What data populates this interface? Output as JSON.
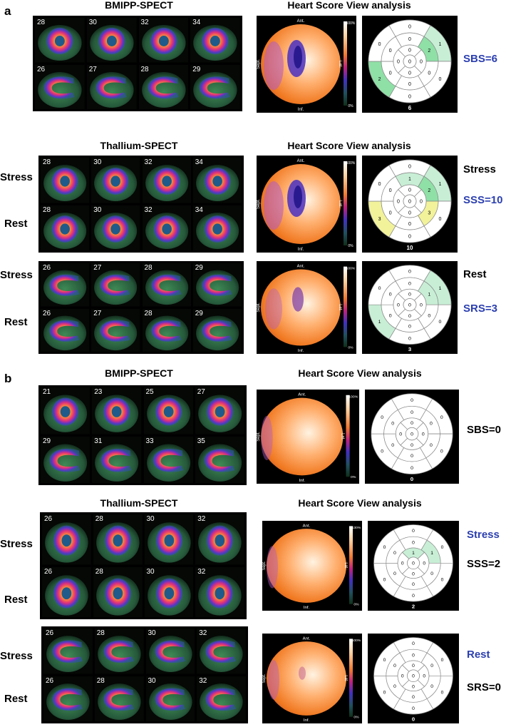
{
  "panels": {
    "a": {
      "label": "a",
      "blocks": [
        {
          "scan_heading": "BMIPP-SPECT",
          "view_heading": "Heart Score View analysis",
          "rows": [
            {
              "label": "",
              "slices": [
                "28",
                "30",
                "32",
                "34"
              ],
              "style": "sa"
            },
            {
              "label": "",
              "slices": [
                "26",
                "27",
                "28",
                "29"
              ],
              "style": "la"
            }
          ],
          "polar": {
            "ant": "Ant.",
            "inf": "Inf.",
            "sept": "Sept.",
            "lat": "Lat.",
            "top_pct": "100%",
            "bottom_pct": "0%",
            "defect": "strong"
          },
          "bullseye": {
            "segments": [
              "0",
              "1",
              "0",
              "0",
              "2",
              "0",
              "0",
              "2",
              "0",
              "0",
              "0",
              "0",
              "0",
              "0",
              "0",
              "0",
              "0"
            ],
            "total": "6"
          },
          "score_lines": [
            {
              "text": "SBS=6",
              "color": "blue"
            }
          ]
        },
        {
          "scan_heading": "Thallium-SPECT",
          "view_heading": "Heart Score View analysis",
          "rows": [
            {
              "label": "Stress",
              "slices": [
                "28",
                "30",
                "32",
                "34"
              ],
              "style": "sa"
            },
            {
              "label": "Rest",
              "slices": [
                "28",
                "30",
                "32",
                "34"
              ],
              "style": "sa"
            }
          ],
          "polar": {
            "ant": "Ant.",
            "inf": "Inf.",
            "sept": "Sept.",
            "lat": "Lat.",
            "top_pct": "100%",
            "bottom_pct": "0%",
            "defect": "strong"
          },
          "bullseye": {
            "segments": [
              "0",
              "1",
              "0",
              "0",
              "3",
              "0",
              "1",
              "2",
              "3",
              "0",
              "0",
              "0",
              "0",
              "0",
              "0",
              "0",
              "0"
            ],
            "total": "10"
          },
          "score_lines": [
            {
              "text": "Stress",
              "color": "black"
            },
            {
              "text": "SSS=10",
              "color": "blue"
            }
          ]
        },
        {
          "scan_heading": "",
          "view_heading": "",
          "rows": [
            {
              "label": "Stress",
              "slices": [
                "26",
                "27",
                "28",
                "29"
              ],
              "style": "la"
            },
            {
              "label": "Rest",
              "slices": [
                "26",
                "27",
                "28",
                "29"
              ],
              "style": "la"
            }
          ],
          "polar": {
            "ant": "Ant.",
            "inf": "Inf.",
            "sept": "Sept.",
            "lat": "Lat.",
            "top_pct": "100%",
            "bottom_pct": "0%",
            "defect": "mild"
          },
          "bullseye": {
            "segments": [
              "0",
              "1",
              "0",
              "0",
              "1",
              "0",
              "0",
              "1",
              "0",
              "0",
              "0",
              "0",
              "0",
              "0",
              "0",
              "0",
              "0"
            ],
            "total": "3"
          },
          "score_lines": [
            {
              "text": "Rest",
              "color": "black"
            },
            {
              "text": "SRS=3",
              "color": "blue"
            }
          ]
        }
      ]
    },
    "b": {
      "label": "b",
      "blocks": [
        {
          "scan_heading": "BMIPP-SPECT",
          "view_heading": "Heart Score View analysis",
          "rows": [
            {
              "label": "",
              "slices": [
                "21",
                "23",
                "25",
                "27"
              ],
              "style": "sa"
            },
            {
              "label": "",
              "slices": [
                "29",
                "31",
                "33",
                "35"
              ],
              "style": "la"
            }
          ],
          "polar": {
            "ant": "Ant.",
            "inf": "Inf.",
            "sept": "Sept.",
            "lat": "Lat.",
            "top_pct": "100%",
            "bottom_pct": "0%",
            "defect": "none"
          },
          "bullseye": {
            "segments": [
              "0",
              "0",
              "0",
              "0",
              "0",
              "0",
              "0",
              "0",
              "0",
              "0",
              "0",
              "0",
              "0",
              "0",
              "0",
              "0",
              "0"
            ],
            "total": "0"
          },
          "score_lines": [
            {
              "text": "SBS=0",
              "color": "black"
            }
          ]
        },
        {
          "scan_heading": "Thallium-SPECT",
          "view_heading": "Heart Score View analysis",
          "rows": [
            {
              "label": "Stress",
              "slices": [
                "26",
                "28",
                "30",
                "32"
              ],
              "style": "sa"
            },
            {
              "label": "Rest",
              "slices": [
                "26",
                "28",
                "30",
                "32"
              ],
              "style": "sa"
            }
          ],
          "polar": {
            "ant": "Ant.",
            "inf": "Inf.",
            "sept": "Sept.",
            "lat": "Lat.",
            "top_pct": "130%",
            "bottom_pct": "0%",
            "defect": "none"
          },
          "bullseye": {
            "segments": [
              "0",
              "0",
              "0",
              "0",
              "0",
              "0",
              "0",
              "1",
              "0",
              "0",
              "0",
              "0",
              "1",
              "0",
              "0",
              "0",
              "0"
            ],
            "total": "2"
          },
          "score_lines": [
            {
              "text": "Stress",
              "color": "blue"
            },
            {
              "text": "SSS=2",
              "color": "black"
            }
          ]
        },
        {
          "scan_heading": "",
          "view_heading": "",
          "rows": [
            {
              "label": "Stress",
              "slices": [
                "26",
                "28",
                "30",
                "32"
              ],
              "style": "la"
            },
            {
              "label": "Rest",
              "slices": [
                "26",
                "28",
                "30",
                "32"
              ],
              "style": "la"
            }
          ],
          "polar": {
            "ant": "Ant.",
            "inf": "Inf.",
            "sept": "Sept.",
            "lat": "Lat.",
            "top_pct": "100%",
            "bottom_pct": "0%",
            "defect": "tiny"
          },
          "bullseye": {
            "segments": [
              "0",
              "0",
              "0",
              "0",
              "0",
              "0",
              "0",
              "0",
              "0",
              "0",
              "0",
              "0",
              "0",
              "0",
              "0",
              "0",
              "0"
            ],
            "total": "0"
          },
          "score_lines": [
            {
              "text": "Rest",
              "color": "blue"
            },
            {
              "text": "SRS=0",
              "color": "black"
            }
          ]
        }
      ]
    }
  },
  "colors": {
    "score_blue": "#2b3fb0",
    "mint": "#c8efd6",
    "green": "#8fe0a6",
    "yellow": "#f2f29a",
    "scan_bg": "#2e6b45"
  }
}
